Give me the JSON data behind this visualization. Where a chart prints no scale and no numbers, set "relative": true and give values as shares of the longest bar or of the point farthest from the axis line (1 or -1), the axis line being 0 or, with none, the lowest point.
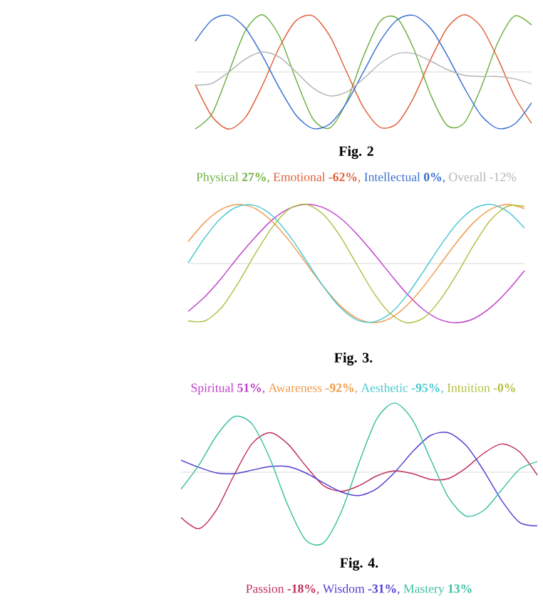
{
  "chart_data": [
    {
      "type": "line",
      "title": "Fig. 2",
      "relative": true,
      "legend": "bottom",
      "categories": [
        null,
        null,
        null,
        null,
        null,
        null,
        null,
        null,
        null,
        null,
        null,
        null,
        null,
        null,
        null,
        null,
        null,
        null,
        null,
        null,
        null
      ],
      "series": [
        {
          "name": "Physical **27%**,",
          "color": "#6fb043",
          "values": [
            -1.0,
            -0.73,
            0,
            0.73,
            1.0,
            0.63,
            -0.14,
            -0.82,
            -0.98,
            -0.52,
            0.27,
            0.89,
            0.94,
            0.4,
            -0.4,
            -0.94,
            -0.89,
            -0.27,
            0.52,
            0.98,
            0.82
          ]
        },
        {
          "name": "Emotional **-62%**,",
          "color": "#e0603a",
          "values": [
            -0.22,
            -0.78,
            -1.0,
            -0.79,
            -0.23,
            0.43,
            0.9,
            0.98,
            0.63,
            0.0,
            -0.62,
            -0.97,
            -0.9,
            -0.44,
            0.22,
            0.78,
            1.0,
            0.79,
            0.23,
            -0.43,
            -0.9
          ]
        },
        {
          "name": "Intellectual **0%**,",
          "color": "#3a6fd0",
          "values": [
            0.54,
            0.91,
            0.99,
            0.76,
            0.28,
            -0.28,
            -0.76,
            -0.99,
            -0.91,
            -0.54,
            0,
            0.54,
            0.91,
            0.99,
            0.76,
            0.28,
            -0.28,
            -0.76,
            -0.99,
            -0.91,
            -0.54
          ]
        },
        {
          "name": "Overall -12%",
          "color": "#b4b4b4",
          "values": [
            -0.23,
            -0.2,
            0.0,
            0.23,
            0.35,
            0.26,
            0.0,
            -0.28,
            -0.42,
            -0.35,
            -0.12,
            0.15,
            0.32,
            0.32,
            0.19,
            0.04,
            -0.06,
            -0.08,
            -0.08,
            -0.12,
            -0.21
          ]
        }
      ]
    },
    {
      "type": "line",
      "title": "Fig. 3.",
      "relative": true,
      "legend": "bottom",
      "categories": [
        null,
        null,
        null,
        null,
        null,
        null,
        null,
        null,
        null,
        null,
        null,
        null,
        null,
        null,
        null,
        null,
        null,
        null,
        null,
        null,
        null
      ],
      "series": [
        {
          "name": "Spiritual **51%**,",
          "color": "#c040c8",
          "values": [
            -0.81,
            -0.56,
            -0.24,
            0.12,
            0.45,
            0.74,
            0.93,
            1.0,
            0.95,
            0.78,
            0.51,
            0.18,
            -0.17,
            -0.51,
            -0.78,
            -0.95,
            -1.0,
            -0.93,
            -0.74,
            -0.46,
            -0.12
          ]
        },
        {
          "name": "Awareness **-92%**,",
          "color": "#f09a4a",
          "values": [
            0.37,
            0.7,
            0.92,
            1.0,
            0.93,
            0.71,
            0.39,
            0.01,
            -0.37,
            -0.7,
            -0.92,
            -1.0,
            -0.93,
            -0.71,
            -0.39,
            -0.01,
            0.37,
            0.7,
            0.92,
            1.0,
            0.93
          ]
        },
        {
          "name": "Aesthetic **-95%**,",
          "color": "#4cc8d0",
          "values": [
            0.01,
            0.44,
            0.78,
            0.97,
            0.98,
            0.81,
            0.48,
            0.06,
            -0.37,
            -0.73,
            -0.95,
            -0.99,
            -0.85,
            -0.54,
            -0.13,
            0.3,
            0.68,
            0.93,
            1.0,
            0.88,
            0.6
          ]
        },
        {
          "name": "Intuition **-0%**",
          "color": "#b0c040",
          "values": [
            -0.97,
            -0.97,
            -0.74,
            -0.32,
            0.17,
            0.61,
            0.92,
            1.0,
            0.84,
            0.48,
            0,
            -0.48,
            -0.84,
            -1.0,
            -0.92,
            -0.61,
            -0.17,
            0.32,
            0.74,
            0.97,
            0.97
          ]
        }
      ]
    },
    {
      "type": "line",
      "title": "Fig. 4.",
      "relative": true,
      "legend": "bottom",
      "categories": [
        null,
        null,
        null,
        null,
        null,
        null,
        null,
        null,
        null,
        null,
        null,
        null,
        null,
        null,
        null,
        null,
        null,
        null,
        null,
        null,
        null
      ],
      "series": [
        {
          "name": "Passion **-18%**,",
          "color": "#c0305a",
          "values": [
            -0.64,
            -0.8,
            -0.53,
            -0.03,
            0.41,
            0.56,
            0.4,
            0.09,
            -0.19,
            -0.27,
            -0.19,
            -0.05,
            0.02,
            -0.02,
            -0.1,
            -0.09,
            0.06,
            0.27,
            0.4,
            0.29,
            -0.04
          ]
        },
        {
          "name": "Wisdom **-31%**,",
          "color": "#5040d0",
          "values": [
            0.17,
            0.07,
            -0.01,
            -0.02,
            0.03,
            0.08,
            0.08,
            -0.01,
            -0.15,
            -0.28,
            -0.33,
            -0.23,
            0.0,
            0.29,
            0.52,
            0.56,
            0.38,
            0.02,
            -0.4,
            -0.71,
            -0.76
          ]
        },
        {
          "name": "Mastery **13%**",
          "color": "#3cc0a0",
          "values": [
            -0.24,
            0.1,
            0.52,
            0.79,
            0.68,
            0.19,
            -0.47,
            -0.96,
            -1.0,
            -0.56,
            0.14,
            0.76,
            0.98,
            0.74,
            0.19,
            -0.35,
            -0.62,
            -0.54,
            -0.25,
            0.04,
            0.15
          ]
        }
      ]
    }
  ]
}
